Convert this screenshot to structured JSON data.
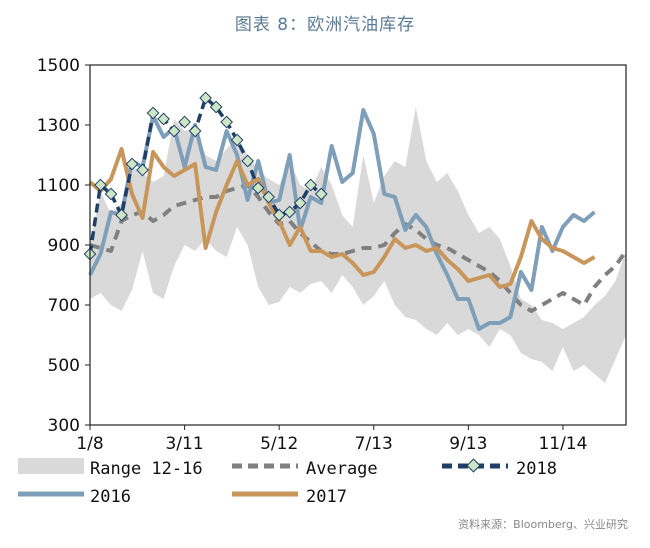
{
  "title": "图表 8：欧洲汽油库存",
  "source": "资料来源：Bloomberg、兴业研究",
  "colors": {
    "range": "#d9d9d9",
    "average": "#808080",
    "s2018": "#1f3f66",
    "s2018_marker": "#cfe6c6",
    "s2016": "#7f9fb8",
    "s2017": "#c8965a"
  },
  "chart_data": {
    "type": "line",
    "x_ticks": [
      "1/8",
      "3/11",
      "5/12",
      "7/13",
      "9/13",
      "11/14"
    ],
    "x_tick_weeks": [
      1,
      10,
      19,
      28,
      37,
      46
    ],
    "x_range": [
      1,
      52
    ],
    "ylim": [
      300,
      1500
    ],
    "y_ticks": [
      300,
      500,
      700,
      900,
      1100,
      1300,
      1500
    ],
    "grid": false,
    "legend": "bottom",
    "series": [
      {
        "name": "Range 12-16",
        "kind": "band",
        "low": [
          720,
          740,
          700,
          680,
          750,
          880,
          740,
          720,
          830,
          900,
          880,
          920,
          880,
          860,
          960,
          900,
          760,
          700,
          710,
          760,
          740,
          770,
          780,
          740,
          800,
          760,
          700,
          730,
          780,
          700,
          660,
          650,
          620,
          600,
          640,
          600,
          620,
          600,
          560,
          620,
          600,
          540,
          520,
          510,
          480,
          560,
          480,
          500,
          470,
          440,
          520,
          600
        ],
        "high": [
          900,
          1080,
          1000,
          1040,
          1160,
          1140,
          1110,
          1130,
          1320,
          1280,
          1290,
          1200,
          1180,
          1220,
          1260,
          1200,
          1150,
          1120,
          1100,
          1180,
          1100,
          1080,
          1160,
          1100,
          1000,
          960,
          1200,
          1040,
          1130,
          1180,
          1160,
          1360,
          1180,
          1110,
          1140,
          1080,
          1000,
          940,
          960,
          920,
          830,
          720,
          700,
          650,
          640,
          620,
          640,
          660,
          700,
          730,
          780,
          880
        ]
      },
      {
        "name": "Average",
        "kind": "line",
        "dash": true,
        "values": [
          900,
          890,
          880,
          980,
          1000,
          1010,
          980,
          1000,
          1030,
          1040,
          1050,
          1060,
          1060,
          1080,
          1090,
          1100,
          1060,
          1010,
          970,
          980,
          940,
          910,
          880,
          870,
          870,
          880,
          890,
          890,
          900,
          940,
          970,
          950,
          920,
          900,
          890,
          870,
          850,
          830,
          810,
          780,
          740,
          700,
          680,
          700,
          720,
          740,
          720,
          700,
          760,
          800,
          830,
          880
        ]
      },
      {
        "name": "2018",
        "kind": "line",
        "dash": true,
        "markers": true,
        "values": [
          870,
          1100,
          1070,
          1000,
          1170,
          1150,
          1340,
          1320,
          1280,
          1310,
          1280,
          1390,
          1360,
          1310,
          1250,
          1180,
          1090,
          1060,
          1000,
          1010,
          1040,
          1100,
          1070
        ]
      },
      {
        "name": "2016",
        "kind": "line",
        "values": [
          800,
          870,
          1010,
          1000,
          1180,
          1160,
          1330,
          1260,
          1290,
          1160,
          1300,
          1160,
          1150,
          1280,
          1200,
          1050,
          1180,
          1040,
          1050,
          1200,
          950,
          1060,
          1040,
          1230,
          1110,
          1140,
          1350,
          1270,
          1070,
          1060,
          950,
          1000,
          960,
          870,
          800,
          720,
          720,
          620,
          640,
          640,
          660,
          810,
          750,
          960,
          880,
          960,
          1000,
          980,
          1010
        ]
      },
      {
        "name": "2017",
        "kind": "line",
        "values": [
          1110,
          1080,
          1120,
          1220,
          1070,
          990,
          1210,
          1160,
          1130,
          1150,
          1170,
          890,
          1010,
          1100,
          1180,
          1100,
          1120,
          1040,
          980,
          900,
          960,
          880,
          880,
          860,
          870,
          840,
          800,
          810,
          860,
          920,
          890,
          900,
          880,
          890,
          850,
          820,
          780,
          790,
          800,
          760,
          770,
          860,
          980,
          920,
          890,
          880,
          860,
          840,
          860
        ]
      }
    ]
  },
  "legend_labels": {
    "range": "Range 12-16",
    "average": "Average",
    "s2018": "2018",
    "s2016": "2016",
    "s2017": "2017"
  }
}
